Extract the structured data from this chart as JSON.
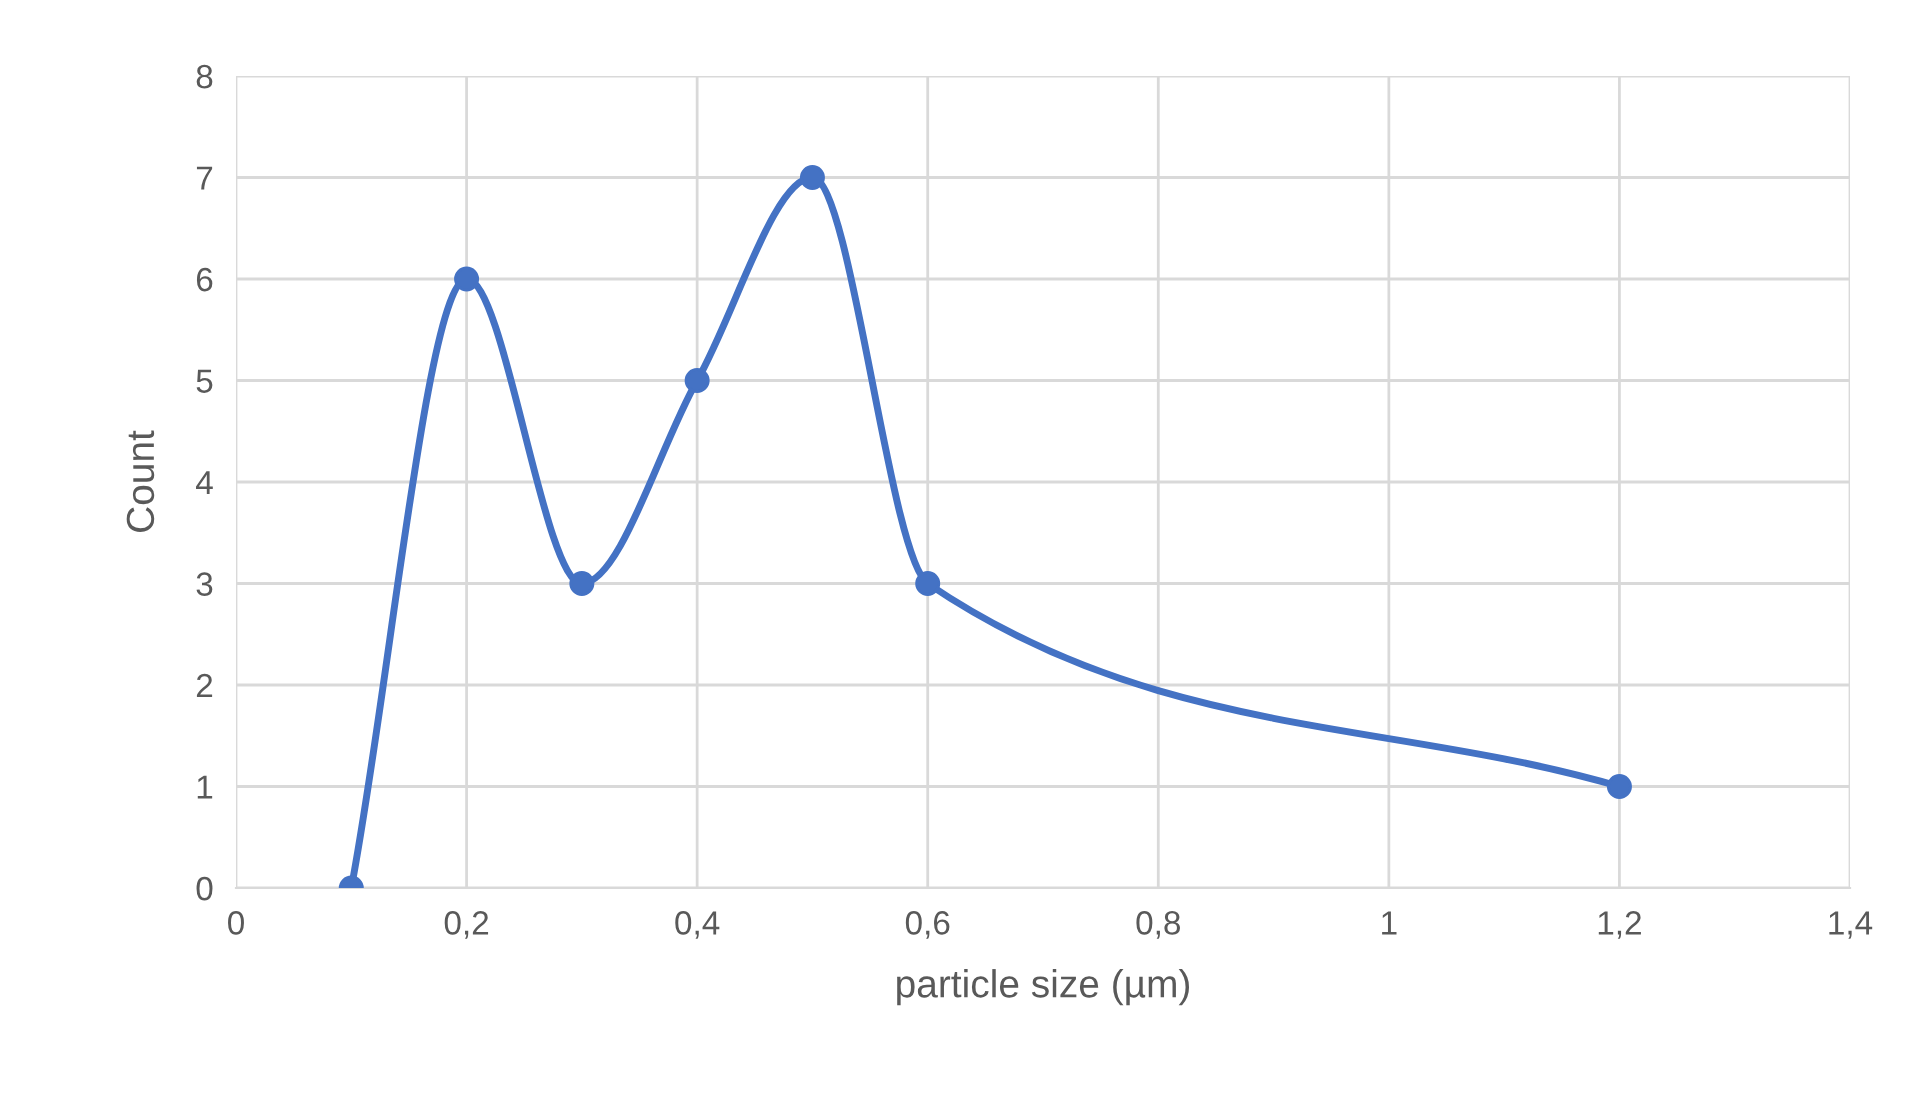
{
  "chart_data": {
    "type": "line",
    "xlabel": "particle size (µm)",
    "ylabel": "Count",
    "x": [
      0.1,
      0.2,
      0.3,
      0.4,
      0.5,
      0.6,
      1.2
    ],
    "series": [
      {
        "color": "#4472c4",
        "values": [
          0,
          6,
          3,
          5,
          7,
          3,
          1
        ]
      }
    ],
    "marker": "circle",
    "line_style": "solid",
    "xlim": [
      0,
      1.4
    ],
    "xticks": [
      0,
      {
        "value": 0.2,
        "label": "0,2"
      },
      {
        "value": 0.4,
        "label": "0,4"
      },
      {
        "value": 0.6,
        "label": "0,6"
      },
      {
        "value": 0.8,
        "label": "0,8"
      },
      1,
      {
        "value": 1.2,
        "label": "1,2"
      },
      {
        "value": 1.4,
        "label": "1,4"
      }
    ],
    "ylim": [
      0,
      8
    ],
    "yticks": [
      0,
      1,
      2,
      3,
      4,
      5,
      6,
      7,
      8
    ],
    "grid": true
  }
}
